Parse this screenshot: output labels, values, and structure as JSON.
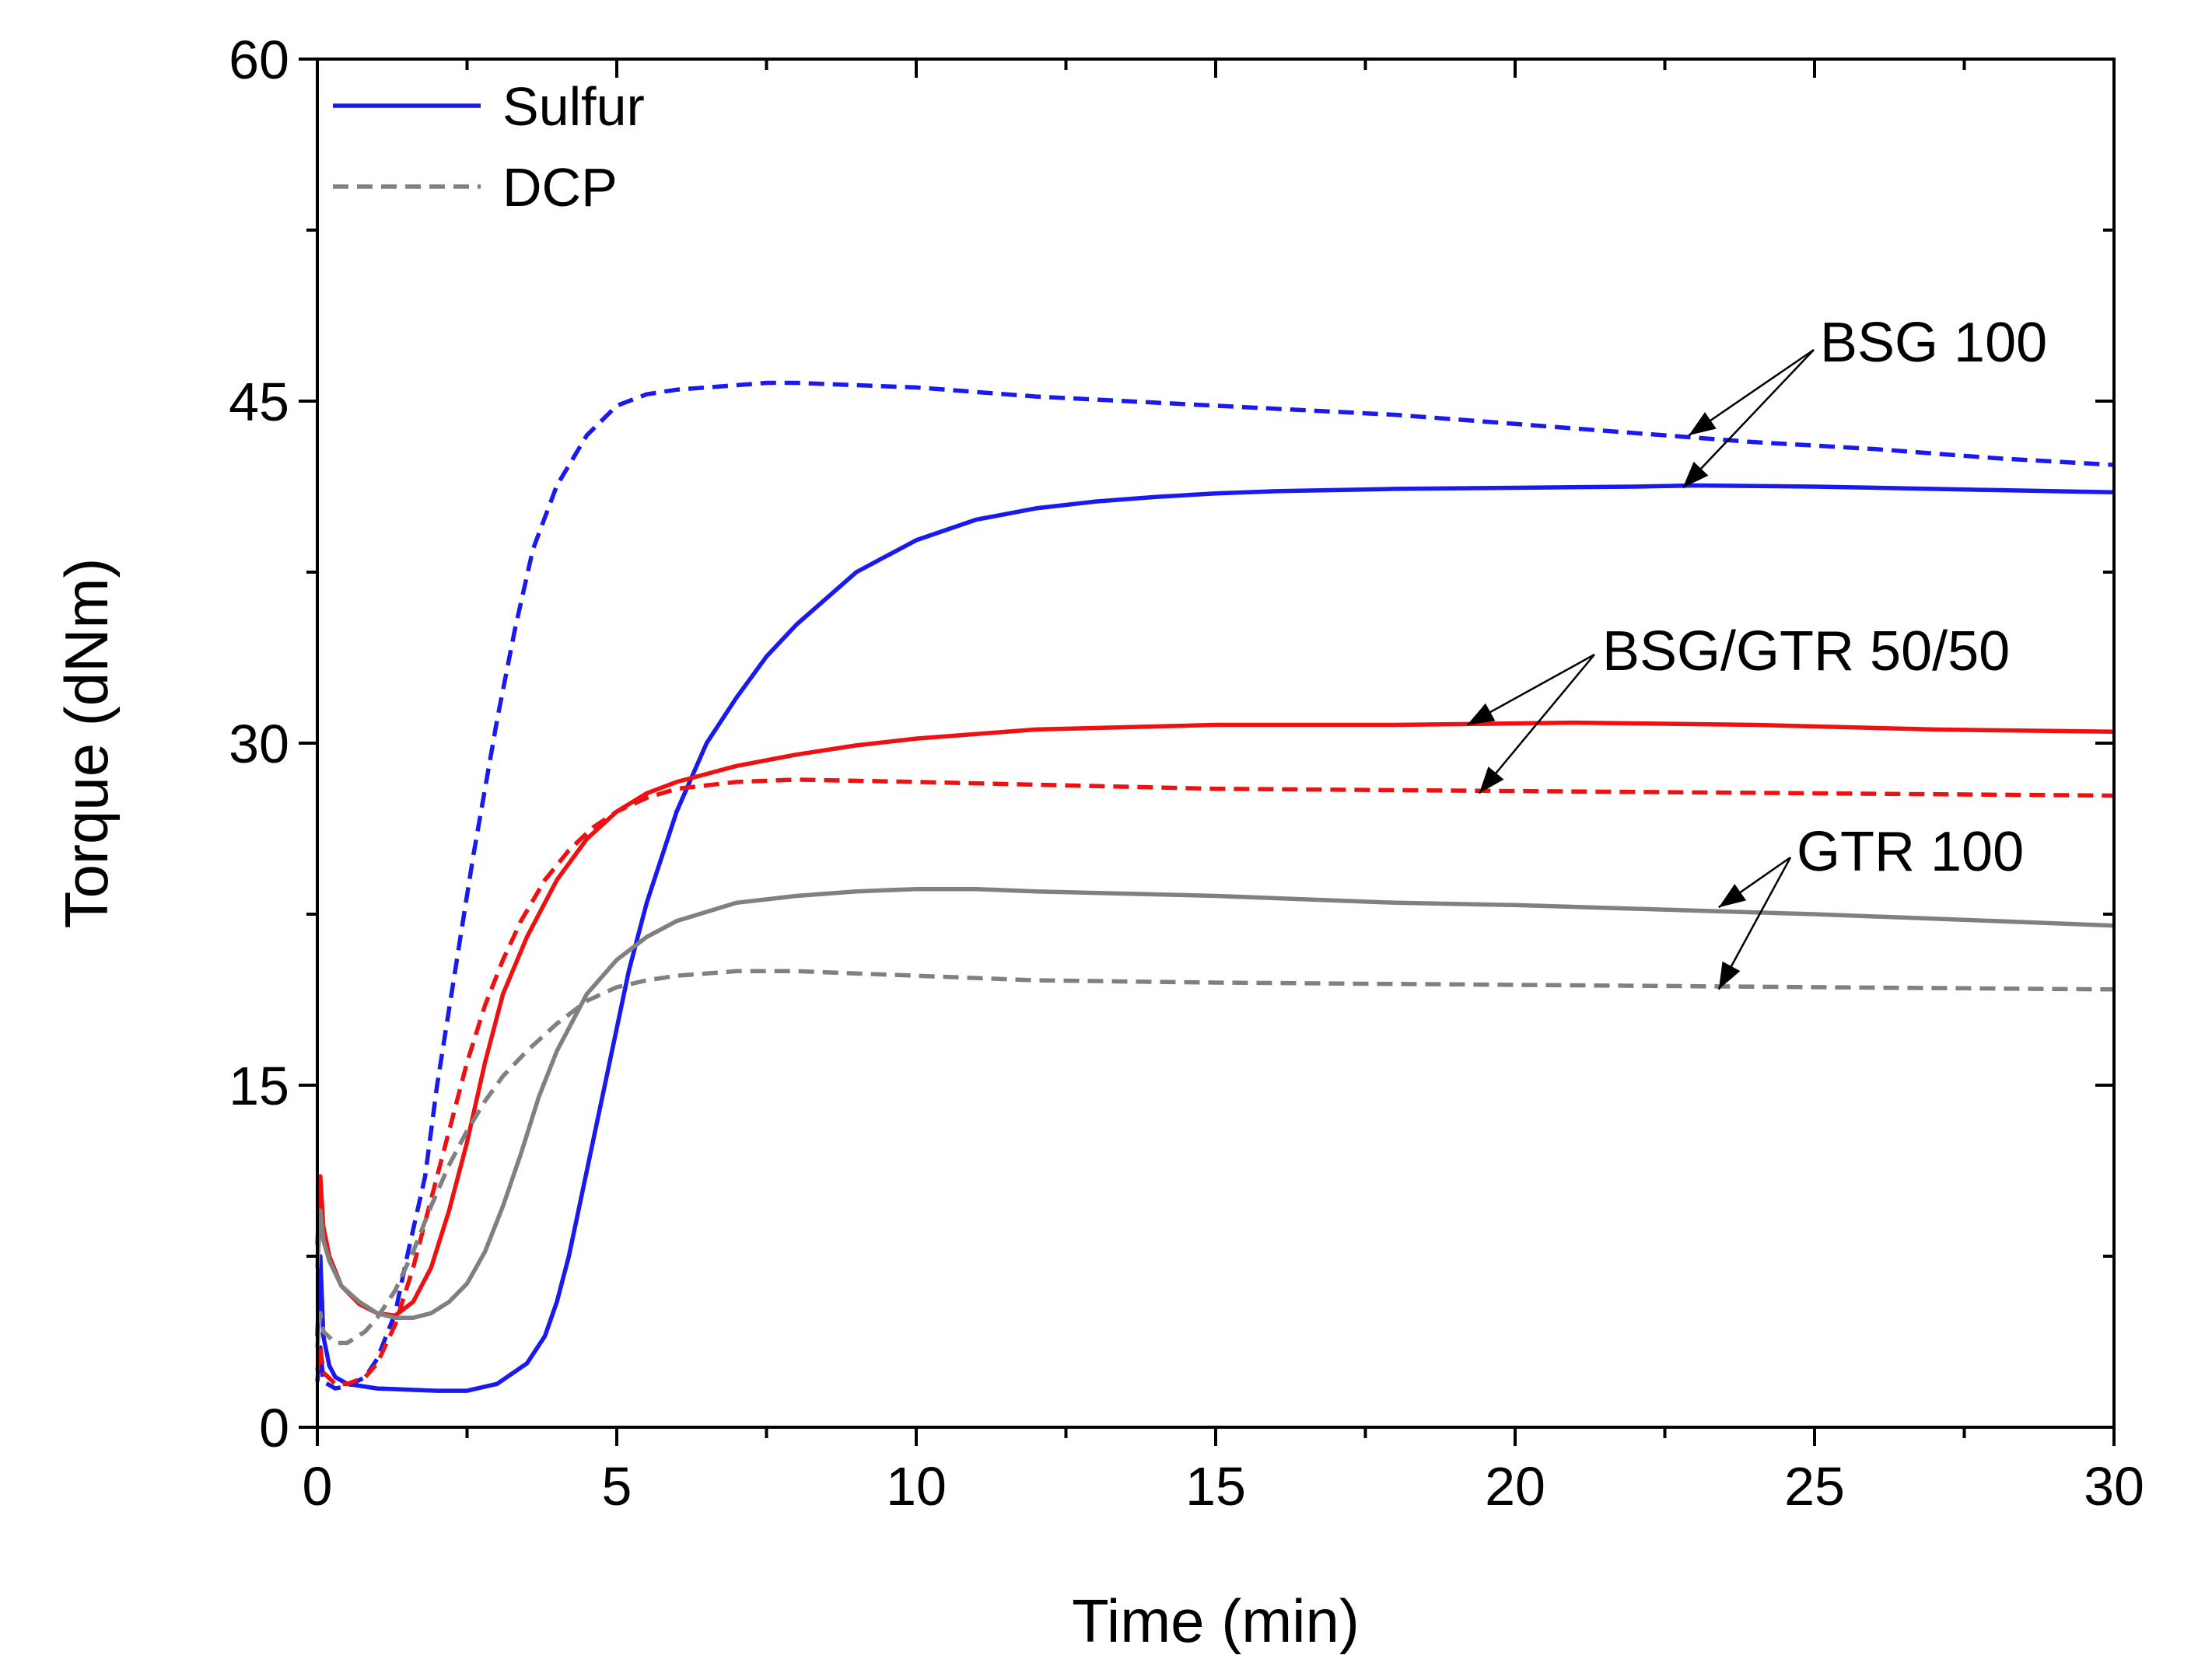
{
  "chart_data": {
    "type": "line",
    "title": "",
    "xlabel": "Time (min)",
    "ylabel": "Torque (dNm)",
    "xlim": [
      0,
      30
    ],
    "ylim": [
      0,
      60
    ],
    "xticks": [
      0,
      5,
      10,
      15,
      20,
      25,
      30
    ],
    "yticks": [
      0,
      15,
      30,
      45,
      60
    ],
    "grid": false,
    "legend_position": "top-left",
    "legend": [
      {
        "label": "Sulfur",
        "style": "solid",
        "color": "#1a1aee"
      },
      {
        "label": "DCP",
        "style": "dashed",
        "color": "#808080"
      }
    ],
    "annotations": [
      {
        "text": "BSG 100",
        "points_to": [
          "BSG 100 DCP",
          "BSG 100 Sulfur"
        ]
      },
      {
        "text": "BSG/GTR 50/50",
        "points_to": [
          "BSG/GTR 50/50 Sulfur",
          "BSG/GTR 50/50 DCP"
        ]
      },
      {
        "text": "GTR 100",
        "points_to": [
          "GTR 100 Sulfur",
          "GTR 100 DCP"
        ]
      }
    ],
    "series": [
      {
        "name": "BSG 100 Sulfur",
        "curing": "Sulfur",
        "color": "#1a1aee",
        "dash": "solid",
        "x": [
          0,
          0.05,
          0.1,
          0.2,
          0.3,
          0.5,
          1,
          2,
          2.5,
          3,
          3.5,
          3.8,
          4,
          4.2,
          4.4,
          4.6,
          4.8,
          5,
          5.2,
          5.5,
          6,
          6.5,
          7,
          7.5,
          8,
          9,
          10,
          11,
          12,
          13,
          14,
          15,
          16,
          18,
          20,
          22,
          23,
          25,
          28,
          30
        ],
        "y": [
          4,
          7.5,
          4,
          2.7,
          2.2,
          1.9,
          1.7,
          1.6,
          1.6,
          1.9,
          2.8,
          4,
          5.5,
          7.5,
          10,
          12.5,
          15,
          17.5,
          20,
          23,
          27,
          30,
          32,
          33.8,
          35.2,
          37.5,
          38.9,
          39.8,
          40.3,
          40.6,
          40.8,
          40.95,
          41.05,
          41.15,
          41.2,
          41.25,
          41.3,
          41.25,
          41.1,
          41
        ]
      },
      {
        "name": "BSG 100 DCP",
        "curing": "DCP",
        "color": "#1a1aee",
        "dash": "dashed",
        "x": [
          0,
          0.05,
          0.1,
          0.3,
          0.5,
          0.8,
          1,
          1.3,
          1.5,
          1.8,
          2,
          2.3,
          2.6,
          3,
          3.3,
          3.6,
          4,
          4.5,
          5,
          5.5,
          6,
          6.5,
          7,
          7.5,
          8,
          9,
          10,
          12,
          15,
          18,
          20,
          22,
          24,
          26,
          28,
          30
        ],
        "y": [
          2,
          3.5,
          2,
          1.7,
          1.8,
          2.2,
          3,
          5,
          7.5,
          11,
          15,
          20,
          25,
          31,
          35,
          38.5,
          41.3,
          43.5,
          44.8,
          45.3,
          45.5,
          45.6,
          45.7,
          45.8,
          45.8,
          45.7,
          45.6,
          45.2,
          44.8,
          44.4,
          44,
          43.6,
          43.2,
          42.9,
          42.5,
          42.2
        ]
      },
      {
        "name": "BSG/GTR 50/50 Sulfur",
        "curing": "Sulfur",
        "color": "#ee1111",
        "dash": "solid",
        "x": [
          0,
          0.05,
          0.1,
          0.2,
          0.4,
          0.7,
          1,
          1.3,
          1.6,
          1.9,
          2.2,
          2.5,
          2.8,
          3.1,
          3.5,
          4,
          4.5,
          5,
          5.5,
          6,
          7,
          8,
          9,
          10,
          12,
          15,
          18,
          21,
          24,
          27,
          30
        ],
        "y": [
          8,
          11,
          8.8,
          7.5,
          6.2,
          5.4,
          5.0,
          4.9,
          5.5,
          7.0,
          9.5,
          12.5,
          16,
          19,
          21.5,
          24,
          25.8,
          27,
          27.8,
          28.3,
          29,
          29.5,
          29.9,
          30.2,
          30.6,
          30.8,
          30.8,
          30.9,
          30.8,
          30.6,
          30.5
        ]
      },
      {
        "name": "BSG/GTR 50/50 DCP",
        "curing": "DCP",
        "color": "#ee1111",
        "dash": "dashed",
        "x": [
          0,
          0.05,
          0.1,
          0.3,
          0.5,
          0.8,
          1,
          1.3,
          1.6,
          1.9,
          2.2,
          2.5,
          2.8,
          3.1,
          3.4,
          3.8,
          4.2,
          4.6,
          5,
          5.5,
          6,
          7,
          8,
          10,
          15,
          20,
          25,
          30
        ],
        "y": [
          2.5,
          3.5,
          2.4,
          1.9,
          1.9,
          2.2,
          2.8,
          4.5,
          7,
          10,
          13,
          16,
          18.5,
          20.5,
          22.2,
          24,
          25.3,
          26.3,
          27,
          27.6,
          28,
          28.3,
          28.4,
          28.3,
          28,
          27.9,
          27.8,
          27.7
        ]
      },
      {
        "name": "GTR 100 Sulfur",
        "curing": "Sulfur",
        "color": "#808080",
        "dash": "solid",
        "x": [
          0,
          0.05,
          0.1,
          0.2,
          0.4,
          0.7,
          1,
          1.3,
          1.6,
          1.9,
          2.2,
          2.5,
          2.8,
          3.1,
          3.4,
          3.7,
          4,
          4.5,
          5,
          5.5,
          6,
          7,
          8,
          9,
          10,
          11,
          12,
          15,
          18,
          20,
          25,
          28,
          30
        ],
        "y": [
          7,
          9.5,
          8.2,
          7.3,
          6.2,
          5.5,
          5.0,
          4.8,
          4.8,
          5.0,
          5.5,
          6.3,
          7.7,
          9.7,
          12,
          14.5,
          16.5,
          19,
          20.5,
          21.5,
          22.2,
          23,
          23.3,
          23.5,
          23.6,
          23.6,
          23.5,
          23.3,
          23,
          22.9,
          22.5,
          22.2,
          22
        ]
      },
      {
        "name": "GTR 100 DCP",
        "curing": "DCP",
        "color": "#808080",
        "dash": "dashed",
        "x": [
          0,
          0.05,
          0.1,
          0.3,
          0.5,
          0.8,
          1,
          1.3,
          1.6,
          1.9,
          2.2,
          2.5,
          2.8,
          3.1,
          3.5,
          4,
          4.5,
          5,
          5.5,
          6,
          6.5,
          7,
          7.5,
          8,
          9,
          10,
          12,
          15,
          20,
          25,
          30
        ],
        "y": [
          3.5,
          5,
          4.2,
          3.7,
          3.7,
          4.2,
          4.8,
          6,
          7.7,
          9.7,
          11.5,
          13,
          14.3,
          15.4,
          16.5,
          17.7,
          18.7,
          19.3,
          19.6,
          19.8,
          19.9,
          20,
          20,
          20,
          19.9,
          19.8,
          19.6,
          19.5,
          19.4,
          19.3,
          19.2
        ]
      }
    ]
  }
}
